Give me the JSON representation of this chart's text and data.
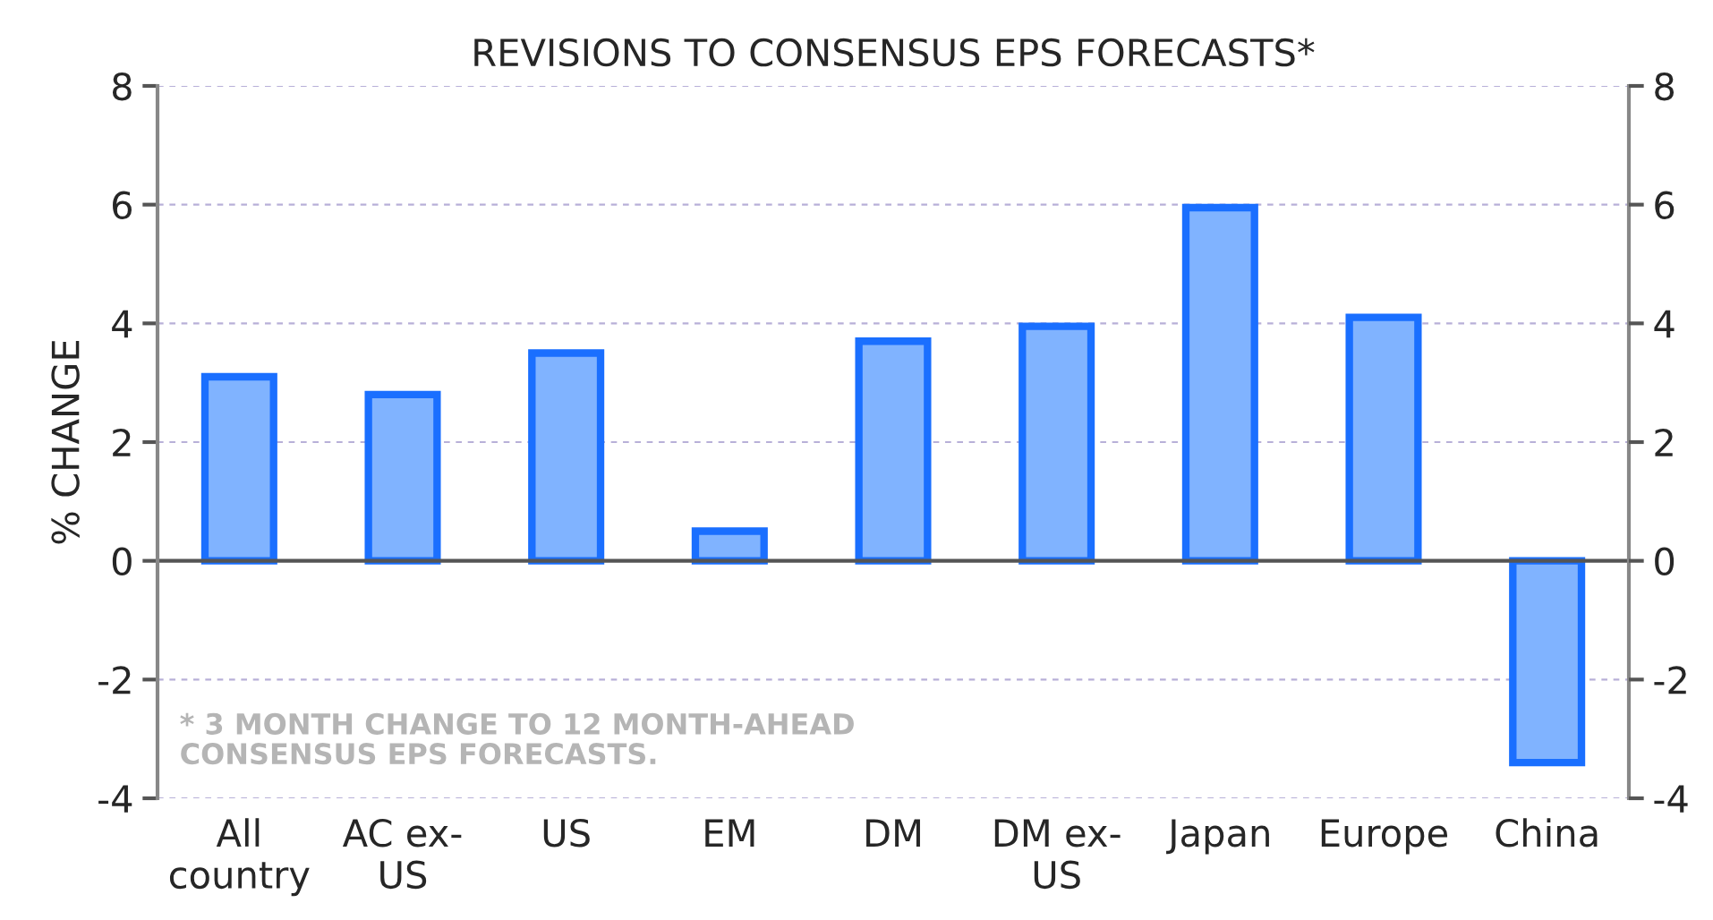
{
  "chart_data": {
    "type": "bar",
    "title": "REVISIONS TO CONSENSUS EPS FORECASTS*",
    "ylabel": "% CHANGE",
    "categories": [
      "All\ncountry",
      "AC ex-\nUS",
      "US",
      "EM",
      "DM",
      "DM ex-\nUS",
      "Japan",
      "Europe",
      "China"
    ],
    "values": [
      3.1,
      2.8,
      3.5,
      0.5,
      3.7,
      3.95,
      5.95,
      4.1,
      -3.4
    ],
    "color": "#80b3ff",
    "ylim": [
      -4,
      8
    ],
    "yticks": [
      -4,
      -2,
      0,
      2,
      4,
      6,
      8
    ],
    "y2lim": [
      -4,
      8
    ],
    "y2ticks": [
      -4,
      -2,
      0,
      2,
      4,
      6,
      8
    ],
    "grid": true,
    "annotations": [
      "* 3 MONTH CHANGE TO 12 MONTH-AHEAD\nCONSENSUS EPS FORECASTS."
    ]
  }
}
